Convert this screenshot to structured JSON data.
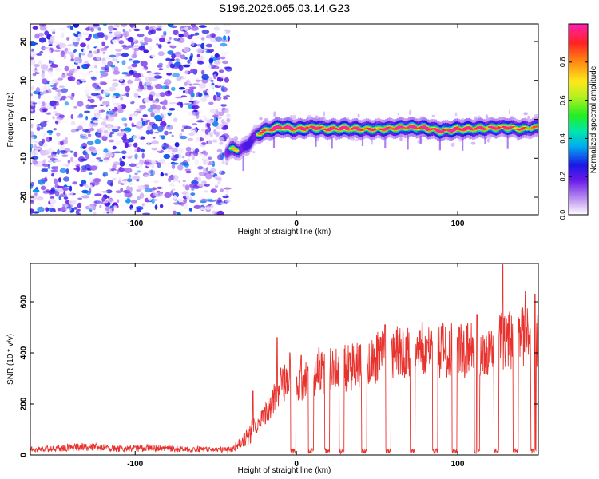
{
  "figure": {
    "title": "S196.2026.065.03.14.G23"
  },
  "chart_data": [
    {
      "type": "heatmap",
      "xlabel": "Height of straight line (km)",
      "ylabel": "Frequency (Hz)",
      "xlim": [
        -165,
        150
      ],
      "ylim": [
        -24.5,
        24.5
      ],
      "x_ticks": [
        -100,
        0,
        100
      ],
      "y_ticks": [
        -20,
        -10,
        0,
        10,
        20
      ],
      "colorbar": {
        "label": "Normalized spectral amplitude",
        "range": [
          0,
          1
        ],
        "ticks": [
          0,
          0.2,
          0.4,
          0.6,
          0.8
        ],
        "tick_labels": [
          "0.0",
          "0.2",
          "0.4",
          "0.6",
          "0.8"
        ]
      },
      "noise_region": {
        "x": [
          -165,
          -42
        ],
        "y": [
          -24.5,
          24.5
        ],
        "amplitude": [
          0.0,
          0.35
        ]
      },
      "signal_track": {
        "x": [
          -43,
          -40,
          -35,
          -30,
          -25,
          -20,
          -10,
          0,
          10,
          20,
          30,
          40,
          50,
          60,
          70,
          80,
          90,
          100,
          110,
          120,
          130,
          140,
          150
        ],
        "y": [
          -8.5,
          -7.5,
          -8,
          -6.5,
          -4,
          -3,
          -2,
          -2.5,
          -2,
          -2.5,
          -2.3,
          -2.5,
          -2.5,
          -2.3,
          -2,
          -2.2,
          -3,
          -2.5,
          -2.4,
          -2.2,
          -2,
          -2.5,
          -2
        ],
        "peak_amplitude": [
          0.45,
          0.55,
          0.5,
          0.45,
          0.5,
          0.7,
          0.95,
          0.85,
          0.8,
          0.8,
          0.9,
          0.75,
          0.7,
          0.8,
          0.8,
          0.85,
          0.8,
          0.9,
          0.85,
          0.75,
          0.8,
          0.7,
          0.6
        ]
      }
    },
    {
      "type": "line",
      "xlabel": "Height of straight line (km)",
      "ylabel": "SNR (10 * v/v)",
      "xlim": [
        -165,
        150
      ],
      "ylim": [
        0,
        750
      ],
      "x_ticks": [
        -100,
        0,
        100
      ],
      "y_ticks": [
        0,
        200,
        400,
        600
      ],
      "color": "#e8322d",
      "series": [
        {
          "x": [
            -165,
            -150,
            -130,
            -110,
            -90,
            -70,
            -50,
            -40,
            -32,
            -25,
            -20,
            -15,
            -10,
            -5,
            0,
            10,
            20,
            30,
            40,
            50,
            60,
            70,
            80,
            90,
            100,
            110,
            120,
            130,
            140,
            150
          ],
          "y": [
            20,
            25,
            30,
            25,
            25,
            22,
            20,
            20,
            60,
            110,
            150,
            200,
            260,
            280,
            270,
            300,
            320,
            330,
            340,
            370,
            390,
            400,
            390,
            400,
            400,
            400,
            410,
            440,
            450,
            430
          ],
          "dips_at_x": [
            -2,
            9,
            19,
            28,
            42,
            57,
            72,
            86,
            98,
            112,
            124,
            136,
            147
          ],
          "spikes": [
            [
              -27,
              250
            ],
            [
              -12,
              460
            ],
            [
              -4,
              400
            ],
            [
              3,
              390
            ],
            [
              14,
              420
            ],
            [
              33,
              400
            ],
            [
              55,
              510
            ],
            [
              78,
              520
            ],
            [
              112,
              550
            ],
            [
              128,
              745
            ],
            [
              142,
              640
            ],
            [
              148,
              630
            ]
          ]
        }
      ]
    }
  ]
}
